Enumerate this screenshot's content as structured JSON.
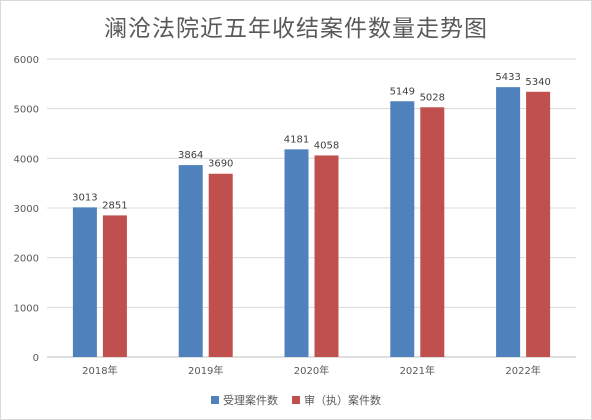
{
  "chart_data": {
    "type": "bar",
    "title": "澜沧法院近五年收结案件数量走势图",
    "categories": [
      "2018年",
      "2019年",
      "2020年",
      "2021年",
      "2022年"
    ],
    "series": [
      {
        "name": "受理案件数",
        "color": "#4f81bd",
        "values": [
          3013,
          3864,
          4181,
          5149,
          5433
        ]
      },
      {
        "name": "审（执）案件数",
        "color": "#c0504d",
        "values": [
          2851,
          3690,
          4058,
          5028,
          5340
        ]
      }
    ],
    "ylim": [
      0,
      6000
    ],
    "yticks": [
      0,
      1000,
      2000,
      3000,
      4000,
      5000,
      6000
    ],
    "grid": true,
    "legend": "bottom"
  }
}
